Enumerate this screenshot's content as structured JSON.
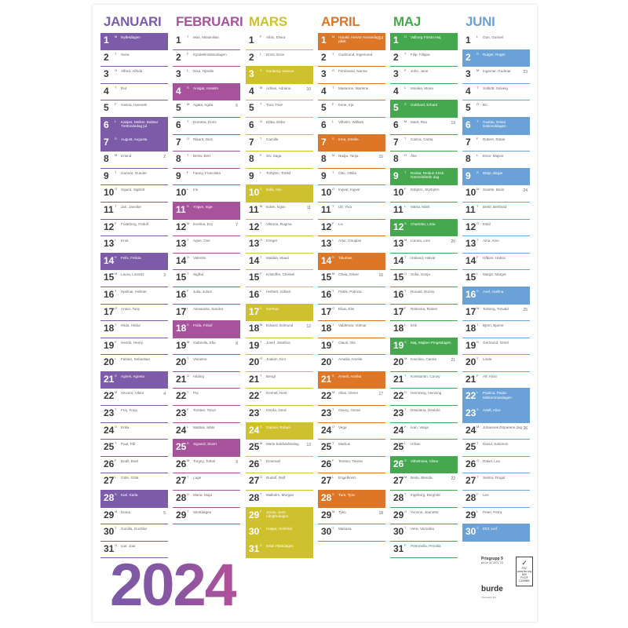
{
  "year": "2024",
  "colors": {
    "januari": "#7c5ca9",
    "februari": "#a6539c",
    "mars": "#cfc12d",
    "april": "#de7628",
    "maj": "#45a84e",
    "juni": "#6aa2d7"
  },
  "months": [
    {
      "name": "JANUARI",
      "color": "#7c5ca9",
      "days": [
        {
          "d": "1",
          "w": "M",
          "n": "Nyårsdagen",
          "hl": true
        },
        {
          "d": "2",
          "w": "T",
          "n": "Svea"
        },
        {
          "d": "3",
          "w": "O",
          "n": "Alfred, Alfrida"
        },
        {
          "d": "4",
          "w": "T",
          "n": "Rut"
        },
        {
          "d": "5",
          "w": "F",
          "n": "Hanna, Hannele"
        },
        {
          "d": "6",
          "w": "L",
          "n": "Kasper, Melker, Baltsar Trettondedag jul",
          "hl": true
        },
        {
          "d": "7",
          "w": "S",
          "n": "August, Augusta",
          "hl": true
        },
        {
          "d": "8",
          "w": "M",
          "n": "Erland",
          "wk": "2"
        },
        {
          "d": "9",
          "w": "T",
          "n": "Gunnar, Gunder"
        },
        {
          "d": "10",
          "w": "O",
          "n": "Sigurd, Sigbritt"
        },
        {
          "d": "11",
          "w": "T",
          "n": "Jan, Jannike"
        },
        {
          "d": "12",
          "w": "F",
          "n": "Frideborg, Fridolf"
        },
        {
          "d": "13",
          "w": "L",
          "n": "Knut"
        },
        {
          "d": "14",
          "w": "S",
          "n": "Felix, Felicia",
          "hl": true
        },
        {
          "d": "15",
          "w": "M",
          "n": "Laura, Lorentz",
          "wk": "3"
        },
        {
          "d": "16",
          "w": "T",
          "n": "Hjalmar, Helmer"
        },
        {
          "d": "17",
          "w": "O",
          "n": "Anton, Tony"
        },
        {
          "d": "18",
          "w": "T",
          "n": "Hilda, Hildur"
        },
        {
          "d": "19",
          "w": "F",
          "n": "Henrik, Henry"
        },
        {
          "d": "20",
          "w": "L",
          "n": "Fabian, Sebastian"
        },
        {
          "d": "21",
          "w": "S",
          "n": "Agnes, Agneta",
          "hl": true
        },
        {
          "d": "22",
          "w": "M",
          "n": "Vincent, Viktor",
          "wk": "4"
        },
        {
          "d": "23",
          "w": "T",
          "n": "Frej, Freja"
        },
        {
          "d": "24",
          "w": "O",
          "n": "Erika"
        },
        {
          "d": "25",
          "w": "T",
          "n": "Paul, Pål"
        },
        {
          "d": "26",
          "w": "F",
          "n": "Bodil, Boel"
        },
        {
          "d": "27",
          "w": "L",
          "n": "Göte, Göta"
        },
        {
          "d": "28",
          "w": "S",
          "n": "Karl, Karla",
          "hl": true
        },
        {
          "d": "29",
          "w": "M",
          "n": "Diana",
          "wk": "5"
        },
        {
          "d": "30",
          "w": "T",
          "n": "Gunilla, Gunhild"
        },
        {
          "d": "31",
          "w": "O",
          "n": "Ivar, Joar"
        }
      ]
    },
    {
      "name": "FEBRUARI",
      "color": "#a6539c",
      "days": [
        {
          "d": "1",
          "w": "T",
          "n": "Max, Maximilian"
        },
        {
          "d": "2",
          "w": "F",
          "n": "Kyndelsmässodagen"
        },
        {
          "d": "3",
          "w": "L",
          "n": "Disa, Hjördis"
        },
        {
          "d": "4",
          "w": "S",
          "n": "Ansgar, Anselm",
          "hl": true
        },
        {
          "d": "5",
          "w": "M",
          "n": "Agata, Agda",
          "wk": "6"
        },
        {
          "d": "6",
          "w": "T",
          "n": "Dorotea, Doris"
        },
        {
          "d": "7",
          "w": "O",
          "n": "Rikard, Dick"
        },
        {
          "d": "8",
          "w": "T",
          "n": "Berta, Bert"
        },
        {
          "d": "9",
          "w": "F",
          "n": "Fanny, Franciska"
        },
        {
          "d": "10",
          "w": "L",
          "n": "Iris"
        },
        {
          "d": "11",
          "w": "S",
          "n": "Yngve, Inge",
          "hl": true
        },
        {
          "d": "12",
          "w": "M",
          "n": "Evelina, Evy",
          "wk": "7"
        },
        {
          "d": "13",
          "w": "T",
          "n": "Agne, Ove"
        },
        {
          "d": "14",
          "w": "O",
          "n": "Valentin"
        },
        {
          "d": "15",
          "w": "T",
          "n": "Sigfrid"
        },
        {
          "d": "16",
          "w": "F",
          "n": "Julia, Julius"
        },
        {
          "d": "17",
          "w": "L",
          "n": "Alexandra, Sandra"
        },
        {
          "d": "18",
          "w": "S",
          "n": "Frida, Fritiof",
          "hl": true
        },
        {
          "d": "19",
          "w": "M",
          "n": "Gabriella, Ella",
          "wk": "8"
        },
        {
          "d": "20",
          "w": "T",
          "n": "Vivianne"
        },
        {
          "d": "21",
          "w": "O",
          "n": "Hilding"
        },
        {
          "d": "22",
          "w": "T",
          "n": "Pia"
        },
        {
          "d": "23",
          "w": "F",
          "n": "Torsten, Torun"
        },
        {
          "d": "24",
          "w": "L",
          "n": "Mattias, Mats"
        },
        {
          "d": "25",
          "w": "S",
          "n": "Sigvard, Sivert",
          "hl": true
        },
        {
          "d": "26",
          "w": "M",
          "n": "Torgny, Torkel",
          "wk": "9"
        },
        {
          "d": "27",
          "w": "T",
          "n": "Lage"
        },
        {
          "d": "28",
          "w": "O",
          "n": "Maria, Maja"
        },
        {
          "d": "29",
          "w": "T",
          "n": "Skottdagen"
        }
      ]
    },
    {
      "name": "MARS",
      "color": "#cfc12d",
      "days": [
        {
          "d": "1",
          "w": "F",
          "n": "Albin, Elvira"
        },
        {
          "d": "2",
          "w": "L",
          "n": "Ernst, Erna"
        },
        {
          "d": "3",
          "w": "S",
          "n": "Gunborg, Gunvor",
          "hl": true
        },
        {
          "d": "4",
          "w": "M",
          "n": "Adrian, Adriana",
          "wk": "10"
        },
        {
          "d": "5",
          "w": "T",
          "n": "Tora, Tove"
        },
        {
          "d": "6",
          "w": "O",
          "n": "Ebba, Ebbe"
        },
        {
          "d": "7",
          "w": "T",
          "n": "Camilla"
        },
        {
          "d": "8",
          "w": "F",
          "n": "Siv, Saga"
        },
        {
          "d": "9",
          "w": "L",
          "n": "Torbjörn, Torleif"
        },
        {
          "d": "10",
          "w": "S",
          "n": "Edla, Ada",
          "hl": true
        },
        {
          "d": "11",
          "w": "M",
          "n": "Edvin, Egon",
          "wk": "11"
        },
        {
          "d": "12",
          "w": "T",
          "n": "Viktoria, Rugma"
        },
        {
          "d": "13",
          "w": "O",
          "n": "Greger"
        },
        {
          "d": "14",
          "w": "T",
          "n": "Matilda, Maud"
        },
        {
          "d": "15",
          "w": "F",
          "n": "Kristoffer, Christel"
        },
        {
          "d": "16",
          "w": "L",
          "n": "Herbert, Gilbert"
        },
        {
          "d": "17",
          "w": "S",
          "n": "Gertrud",
          "hl": true
        },
        {
          "d": "18",
          "w": "M",
          "n": "Edvard, Edmund",
          "wk": "12"
        },
        {
          "d": "19",
          "w": "T",
          "n": "Josef, Josefina"
        },
        {
          "d": "20",
          "w": "O",
          "n": "Joakim, Kim"
        },
        {
          "d": "21",
          "w": "T",
          "n": "Bengt"
        },
        {
          "d": "22",
          "w": "F",
          "n": "Kennet, Kent"
        },
        {
          "d": "23",
          "w": "L",
          "n": "Gerda, Gerd"
        },
        {
          "d": "24",
          "w": "S",
          "n": "Gabriel, Rafael",
          "hl": true
        },
        {
          "d": "25",
          "w": "M",
          "n": "Marie bebådelsedag",
          "wk": "13"
        },
        {
          "d": "26",
          "w": "T",
          "n": "Emanuel"
        },
        {
          "d": "27",
          "w": "O",
          "n": "Rudolf, Ralf"
        },
        {
          "d": "28",
          "w": "T",
          "n": "Malkolm, Morgan"
        },
        {
          "d": "29",
          "w": "F",
          "n": "Jonas, Jens Långfredagen",
          "hl": true
        },
        {
          "d": "30",
          "w": "L",
          "n": "Holger, Holmfrid",
          "hl": true
        },
        {
          "d": "31",
          "w": "S",
          "n": "Ester Påskdagen",
          "hl": true
        }
      ]
    },
    {
      "name": "APRIL",
      "color": "#de7628",
      "days": [
        {
          "d": "1",
          "w": "M",
          "n": "Harald, Hervor Annandag påsk",
          "wk": "14",
          "hl": true
        },
        {
          "d": "2",
          "w": "T",
          "n": "Gudmund, Ingemund"
        },
        {
          "d": "3",
          "w": "O",
          "n": "Ferdinand, Nanna"
        },
        {
          "d": "4",
          "w": "T",
          "n": "Marianne, Marlene"
        },
        {
          "d": "5",
          "w": "F",
          "n": "Irene, Irja"
        },
        {
          "d": "6",
          "w": "L",
          "n": "Vilhelm, William"
        },
        {
          "d": "7",
          "w": "S",
          "n": "Irma, Irmelin",
          "hl": true
        },
        {
          "d": "8",
          "w": "M",
          "n": "Nadja, Tanja",
          "wk": "15"
        },
        {
          "d": "9",
          "w": "T",
          "n": "Otto, Ottilia"
        },
        {
          "d": "10",
          "w": "O",
          "n": "Ingvar, Ingvor"
        },
        {
          "d": "11",
          "w": "T",
          "n": "Ulf, Ylva"
        },
        {
          "d": "12",
          "w": "F",
          "n": "Liv"
        },
        {
          "d": "13",
          "w": "L",
          "n": "Artur, Douglas"
        },
        {
          "d": "14",
          "w": "S",
          "n": "Tiburtius",
          "hl": true
        },
        {
          "d": "15",
          "w": "M",
          "n": "Olivia, Oliver",
          "wk": "16"
        },
        {
          "d": "16",
          "w": "T",
          "n": "Patrik, Patricia"
        },
        {
          "d": "17",
          "w": "O",
          "n": "Elias, Elis"
        },
        {
          "d": "18",
          "w": "T",
          "n": "Valdemar, Volmar"
        },
        {
          "d": "19",
          "w": "F",
          "n": "Olaus, Ola"
        },
        {
          "d": "20",
          "w": "L",
          "n": "Amalia, Amelie"
        },
        {
          "d": "21",
          "w": "S",
          "n": "Anneli, Annika",
          "hl": true
        },
        {
          "d": "22",
          "w": "M",
          "n": "Allan, Glenn",
          "wk": "17"
        },
        {
          "d": "23",
          "w": "T",
          "n": "Georg, Göran"
        },
        {
          "d": "24",
          "w": "O",
          "n": "Vega"
        },
        {
          "d": "25",
          "w": "T",
          "n": "Markus"
        },
        {
          "d": "26",
          "w": "F",
          "n": "Teresia, Terese"
        },
        {
          "d": "27",
          "w": "L",
          "n": "Engelbrekt"
        },
        {
          "d": "28",
          "w": "S",
          "n": "Ture, Tyra",
          "hl": true
        },
        {
          "d": "29",
          "w": "M",
          "n": "Tyko",
          "wk": "18"
        },
        {
          "d": "30",
          "w": "T",
          "n": "Mariana"
        }
      ]
    },
    {
      "name": "MAJ",
      "color": "#45a84e",
      "days": [
        {
          "d": "1",
          "w": "O",
          "n": "Valborg Första maj",
          "hl": true
        },
        {
          "d": "2",
          "w": "T",
          "n": "Filip, Filippa"
        },
        {
          "d": "3",
          "w": "F",
          "n": "John, Jane"
        },
        {
          "d": "4",
          "w": "L",
          "n": "Monika, Mona"
        },
        {
          "d": "5",
          "w": "S",
          "n": "Gotthard, Erhard",
          "hl": true
        },
        {
          "d": "6",
          "w": "M",
          "n": "Marit, Rita",
          "wk": "19"
        },
        {
          "d": "7",
          "w": "T",
          "n": "Carina, Carita"
        },
        {
          "d": "8",
          "w": "O",
          "n": "Åke"
        },
        {
          "d": "9",
          "w": "T",
          "n": "Reidar, Reidun Kristi himmelsfärds dag",
          "hl": true
        },
        {
          "d": "10",
          "w": "F",
          "n": "Esbjörn, Styrbjörn"
        },
        {
          "d": "11",
          "w": "L",
          "n": "Märta, Märit"
        },
        {
          "d": "12",
          "w": "S",
          "n": "Charlotta, Lotta",
          "hl": true
        },
        {
          "d": "13",
          "w": "M",
          "n": "Linnea, Linn",
          "wk": "20"
        },
        {
          "d": "14",
          "w": "T",
          "n": "Halvard, Halvar"
        },
        {
          "d": "15",
          "w": "O",
          "n": "Sofia, Sonja"
        },
        {
          "d": "16",
          "w": "T",
          "n": "Ronald, Ronny"
        },
        {
          "d": "17",
          "w": "F",
          "n": "Rebecka, Ruben"
        },
        {
          "d": "18",
          "w": "L",
          "n": "Erik"
        },
        {
          "d": "19",
          "w": "S",
          "n": "Maj, Majken Pingstdagen",
          "hl": true
        },
        {
          "d": "20",
          "w": "M",
          "n": "Karolina, Carola",
          "wk": "21"
        },
        {
          "d": "21",
          "w": "T",
          "n": "Konstantin, Conny"
        },
        {
          "d": "22",
          "w": "O",
          "n": "Hemming, Henning"
        },
        {
          "d": "23",
          "w": "T",
          "n": "Desideria, Desirée"
        },
        {
          "d": "24",
          "w": "F",
          "n": "Ivan, Vanja"
        },
        {
          "d": "25",
          "w": "L",
          "n": "Urban"
        },
        {
          "d": "26",
          "w": "S",
          "n": "Vilhelmina, Vilma",
          "hl": true
        },
        {
          "d": "27",
          "w": "M",
          "n": "Beda, Blenda",
          "wk": "22"
        },
        {
          "d": "28",
          "w": "T",
          "n": "Ingeborg, Borghild"
        },
        {
          "d": "29",
          "w": "O",
          "n": "Yvonne, Jeanette"
        },
        {
          "d": "30",
          "w": "T",
          "n": "Vera, Veronika"
        },
        {
          "d": "31",
          "w": "F",
          "n": "Petronella, Pernilla"
        }
      ]
    },
    {
      "name": "JUNI",
      "color": "#6aa2d7",
      "days": [
        {
          "d": "1",
          "w": "L",
          "n": "Gun, Gunnel"
        },
        {
          "d": "2",
          "w": "S",
          "n": "Rutger, Roger",
          "hl": true
        },
        {
          "d": "3",
          "w": "M",
          "n": "Ingemar, Gudmar",
          "wk": "23"
        },
        {
          "d": "4",
          "w": "T",
          "n": "Solbritt, Solveig"
        },
        {
          "d": "5",
          "w": "O",
          "n": "Bo"
        },
        {
          "d": "6",
          "w": "T",
          "n": "Gustav, Gösta Nationaldagen",
          "hl": true
        },
        {
          "d": "7",
          "w": "F",
          "n": "Robert, Robin"
        },
        {
          "d": "8",
          "w": "L",
          "n": "Eivor, Majvor"
        },
        {
          "d": "9",
          "w": "S",
          "n": "Börje, Birger",
          "hl": true
        },
        {
          "d": "10",
          "w": "M",
          "n": "Svante, Boris",
          "wk": "24"
        },
        {
          "d": "11",
          "w": "T",
          "n": "Bertil, Berthold"
        },
        {
          "d": "12",
          "w": "O",
          "n": "Eskil"
        },
        {
          "d": "13",
          "w": "T",
          "n": "Aina, Aino"
        },
        {
          "d": "14",
          "w": "F",
          "n": "Håkan, Hakon"
        },
        {
          "d": "15",
          "w": "L",
          "n": "Margit, Margot"
        },
        {
          "d": "16",
          "w": "S",
          "n": "Axel, Axelina",
          "hl": true
        },
        {
          "d": "17",
          "w": "M",
          "n": "Torborg, Torvald",
          "wk": "25"
        },
        {
          "d": "18",
          "w": "T",
          "n": "Björn, Bjarne"
        },
        {
          "d": "19",
          "w": "O",
          "n": "Germund, Görel"
        },
        {
          "d": "20",
          "w": "T",
          "n": "Linda"
        },
        {
          "d": "21",
          "w": "F",
          "n": "Alf, Alvar"
        },
        {
          "d": "22",
          "w": "L",
          "n": "Paulina, Paula Midsommardagen",
          "hl": true
        },
        {
          "d": "23",
          "w": "S",
          "n": "Adolf, Alice",
          "hl": true
        },
        {
          "d": "24",
          "w": "M",
          "n": "Johannes Döparens dag",
          "wk": "26"
        },
        {
          "d": "25",
          "w": "T",
          "n": "David, Salomon"
        },
        {
          "d": "26",
          "w": "O",
          "n": "Rakel, Lea"
        },
        {
          "d": "27",
          "w": "T",
          "n": "Selma, Fingal"
        },
        {
          "d": "28",
          "w": "F",
          "n": "Leo"
        },
        {
          "d": "29",
          "w": "L",
          "n": "Peter, Petra"
        },
        {
          "d": "30",
          "w": "S",
          "n": "Elof, Leif",
          "hl": true
        }
      ]
    }
  ],
  "footer": {
    "prisgrupp": "Prisgrupp 9",
    "artnr": "Art.nr 01 3071 24",
    "brand": "burde",
    "fsc_mark": "FSC",
    "fsc_url": "www.fsc.org",
    "fsc_mix": "MIX",
    "fsc_code": "FSC® C169881",
    "print": "Tillverkad i EU"
  }
}
